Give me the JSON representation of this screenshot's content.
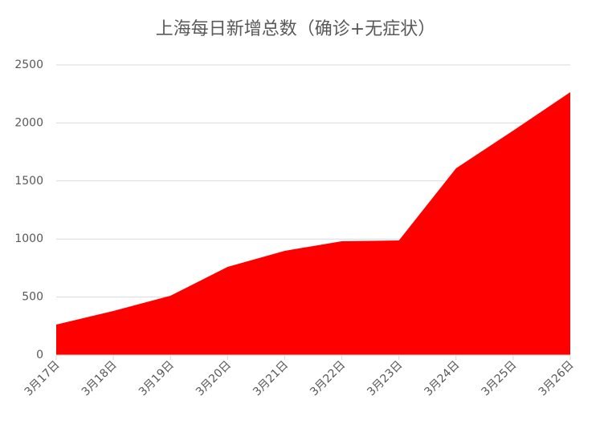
{
  "chart_data": {
    "type": "area",
    "title": "上海每日新增总数（确诊+无症状）",
    "categories": [
      "3月17日",
      "3月18日",
      "3月19日",
      "3月20日",
      "3月21日",
      "3月22日",
      "3月23日",
      "3月24日",
      "3月25日",
      "3月26日"
    ],
    "values": [
      262,
      380,
      511,
      760,
      898,
      981,
      988,
      1609,
      1934,
      2265
    ],
    "color": "#ff0000",
    "ylim": [
      0,
      2500
    ],
    "yticks": [
      0,
      500,
      1000,
      1500,
      2000,
      2500
    ],
    "grid": true
  }
}
